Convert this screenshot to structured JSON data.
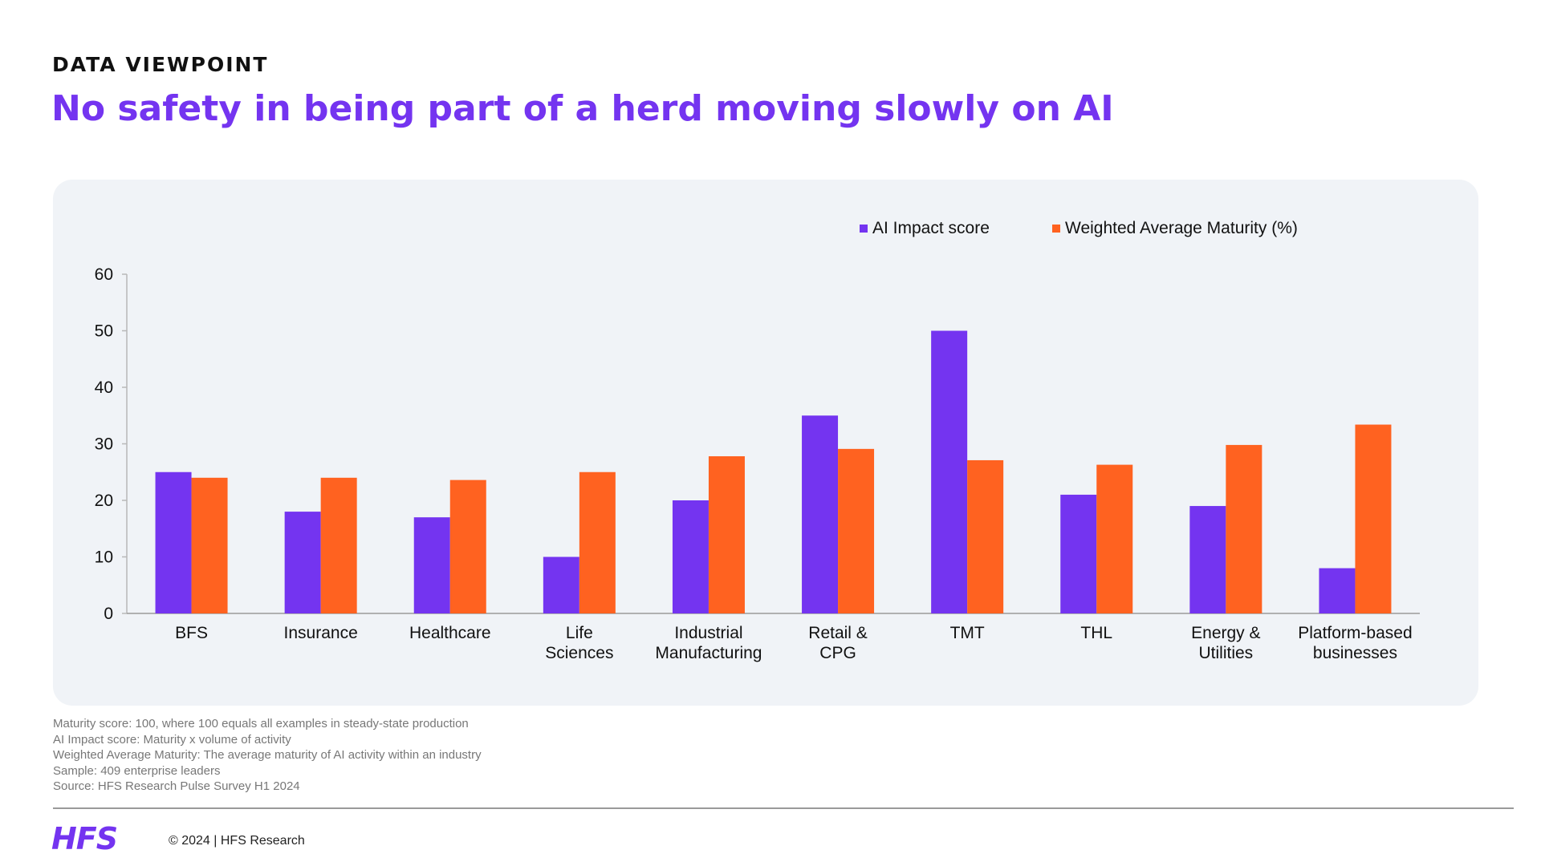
{
  "header": {
    "eyebrow": "DATA VIEWPOINT",
    "title": "No safety in being part of a herd moving slowly on AI"
  },
  "colors": {
    "accent": "#7434f0",
    "series_1": "#7434f0",
    "series_2": "#ff6220",
    "panel_bg": "#f0f3f7"
  },
  "chart_data": {
    "type": "bar",
    "categories": [
      [
        "BFS"
      ],
      [
        "Insurance"
      ],
      [
        "Healthcare"
      ],
      [
        "Life",
        "Sciences"
      ],
      [
        "Industrial",
        "Manufacturing"
      ],
      [
        "Retail &",
        "CPG"
      ],
      [
        "TMT"
      ],
      [
        "THL"
      ],
      [
        "Energy &",
        "Utilities"
      ],
      [
        "Platform-based",
        "businesses"
      ]
    ],
    "series": [
      {
        "name": "AI Impact score",
        "color": "#7434f0",
        "values": [
          25,
          18,
          17,
          10,
          20,
          35,
          50,
          21,
          19,
          8
        ]
      },
      {
        "name": "Weighted Average Maturity (%)",
        "color": "#ff6220",
        "values": [
          24,
          24,
          23.6,
          25,
          27.8,
          29.1,
          27.1,
          26.3,
          29.8,
          33.4
        ]
      }
    ],
    "ylim": [
      0,
      60
    ],
    "yticks": [
      0,
      10,
      20,
      30,
      40,
      50,
      60
    ],
    "legend_position": "top-right",
    "grid": false
  },
  "notes": [
    "Maturity score: 100, where 100 equals all examples in steady-state production",
    "AI Impact score: Maturity x volume of activity",
    "Weighted Average Maturity: The average maturity of AI activity within an industry",
    "Sample: 409 enterprise leaders",
    "Source: HFS Research Pulse Survey H1 2024"
  ],
  "footer": {
    "logo_text": "HFS",
    "copyright": "© 2024 | HFS Research"
  }
}
